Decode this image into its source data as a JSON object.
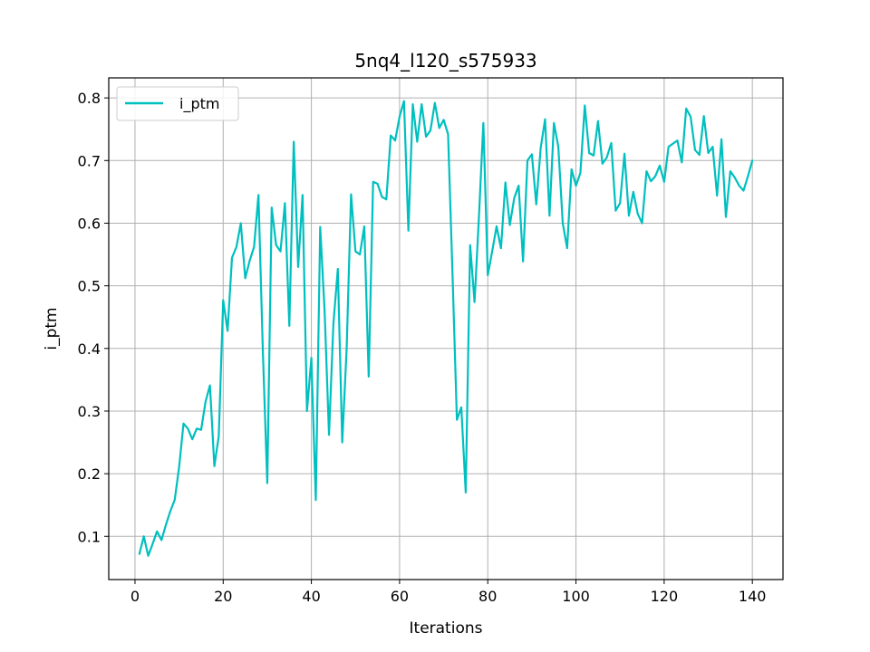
{
  "chart_data": {
    "type": "line",
    "title": "5nq4_l120_s575933",
    "xlabel": "Iterations",
    "ylabel": "i_ptm",
    "xlim": [
      -5.95,
      146.95
    ],
    "ylim": [
      0.031,
      0.832
    ],
    "xticks": [
      0,
      20,
      40,
      60,
      80,
      100,
      120,
      140
    ],
    "yticks": [
      0.1,
      0.2,
      0.3,
      0.4,
      0.5,
      0.6,
      0.7,
      0.8
    ],
    "xtick_labels": [
      "0",
      "20",
      "40",
      "60",
      "80",
      "100",
      "120",
      "140"
    ],
    "ytick_labels": [
      "0.1",
      "0.2",
      "0.3",
      "0.4",
      "0.5",
      "0.6",
      "0.7",
      "0.8"
    ],
    "grid": true,
    "legend_position": "top-left",
    "series": [
      {
        "name": "i_ptm",
        "color": "#00bfbf",
        "x": [
          1,
          2,
          3,
          4,
          5,
          6,
          7,
          8,
          9,
          10,
          11,
          12,
          13,
          14,
          15,
          16,
          17,
          18,
          19,
          20,
          21,
          22,
          23,
          24,
          25,
          26,
          27,
          28,
          29,
          30,
          31,
          32,
          33,
          34,
          35,
          36,
          37,
          38,
          39,
          40,
          41,
          42,
          43,
          44,
          45,
          46,
          47,
          48,
          49,
          50,
          51,
          52,
          53,
          54,
          55,
          56,
          57,
          58,
          59,
          60,
          61,
          62,
          63,
          64,
          65,
          66,
          67,
          68,
          69,
          70,
          71,
          72,
          73,
          74,
          75,
          76,
          77,
          78,
          79,
          80,
          81,
          82,
          83,
          84,
          85,
          86,
          87,
          88,
          89,
          90,
          91,
          92,
          93,
          94,
          95,
          96,
          97,
          98,
          99,
          100,
          101,
          102,
          103,
          104,
          105,
          106,
          107,
          108,
          109,
          110,
          111,
          112,
          113,
          114,
          115,
          116,
          117,
          118,
          119,
          120,
          121,
          122,
          123,
          124,
          125,
          126,
          127,
          128,
          129,
          130,
          131,
          132,
          133,
          134,
          135,
          136,
          137,
          138,
          139,
          140
        ],
        "y": [
          0.072,
          0.1,
          0.069,
          0.088,
          0.108,
          0.094,
          0.118,
          0.14,
          0.158,
          0.21,
          0.28,
          0.272,
          0.255,
          0.272,
          0.27,
          0.315,
          0.341,
          0.212,
          0.26,
          0.477,
          0.428,
          0.545,
          0.562,
          0.6,
          0.512,
          0.54,
          0.562,
          0.645,
          0.395,
          0.185,
          0.625,
          0.565,
          0.555,
          0.632,
          0.436,
          0.73,
          0.53,
          0.645,
          0.3,
          0.385,
          0.158,
          0.594,
          0.46,
          0.262,
          0.44,
          0.527,
          0.25,
          0.4,
          0.646,
          0.555,
          0.55,
          0.595,
          0.355,
          0.666,
          0.663,
          0.642,
          0.638,
          0.74,
          0.732,
          0.77,
          0.795,
          0.588,
          0.79,
          0.73,
          0.79,
          0.738,
          0.748,
          0.792,
          0.752,
          0.765,
          0.742,
          0.52,
          0.286,
          0.306,
          0.17,
          0.565,
          0.474,
          0.61,
          0.76,
          0.517,
          0.555,
          0.595,
          0.56,
          0.665,
          0.597,
          0.64,
          0.66,
          0.539,
          0.7,
          0.71,
          0.63,
          0.72,
          0.766,
          0.612,
          0.76,
          0.722,
          0.6,
          0.56,
          0.686,
          0.66,
          0.68,
          0.788,
          0.712,
          0.708,
          0.763,
          0.695,
          0.705,
          0.728,
          0.62,
          0.632,
          0.711,
          0.612,
          0.65,
          0.615,
          0.6,
          0.683,
          0.667,
          0.675,
          0.692,
          0.666,
          0.722,
          0.727,
          0.732,
          0.697,
          0.783,
          0.77,
          0.717,
          0.709,
          0.771,
          0.712,
          0.722,
          0.644,
          0.734,
          0.61,
          0.683,
          0.673,
          0.66,
          0.652,
          0.675,
          0.7
        ]
      }
    ]
  }
}
